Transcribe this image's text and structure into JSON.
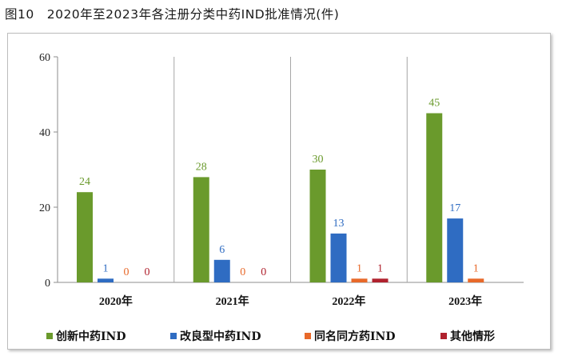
{
  "title": "图10　2020年至2023年各注册分类中药IND批准情况(件)",
  "chart_data": {
    "type": "bar",
    "title": "图10　2020年至2023年各注册分类中药IND批准情况(件)",
    "categories": [
      "2020年",
      "2021年",
      "2022年",
      "2023年"
    ],
    "series": [
      {
        "name": "创新中药IND",
        "color": "#6a9a2c",
        "label_color": "#6a9a2c",
        "values": [
          24,
          28,
          30,
          45
        ]
      },
      {
        "name": "改良型中药IND",
        "color": "#2f6cc2",
        "label_color": "#2f6cc2",
        "values": [
          1,
          6,
          13,
          17
        ]
      },
      {
        "name": "同名同方药IND",
        "color": "#e8692a",
        "label_color": "#e8692a",
        "values": [
          0,
          0,
          1,
          1
        ]
      },
      {
        "name": "其他情形",
        "color": "#b0222e",
        "label_color": "#b0222e",
        "values": [
          0,
          0,
          1,
          null
        ]
      }
    ],
    "ylim": [
      0,
      60
    ],
    "yticks": [
      0,
      20,
      40,
      60
    ],
    "grid": false,
    "legend": "bottom"
  }
}
